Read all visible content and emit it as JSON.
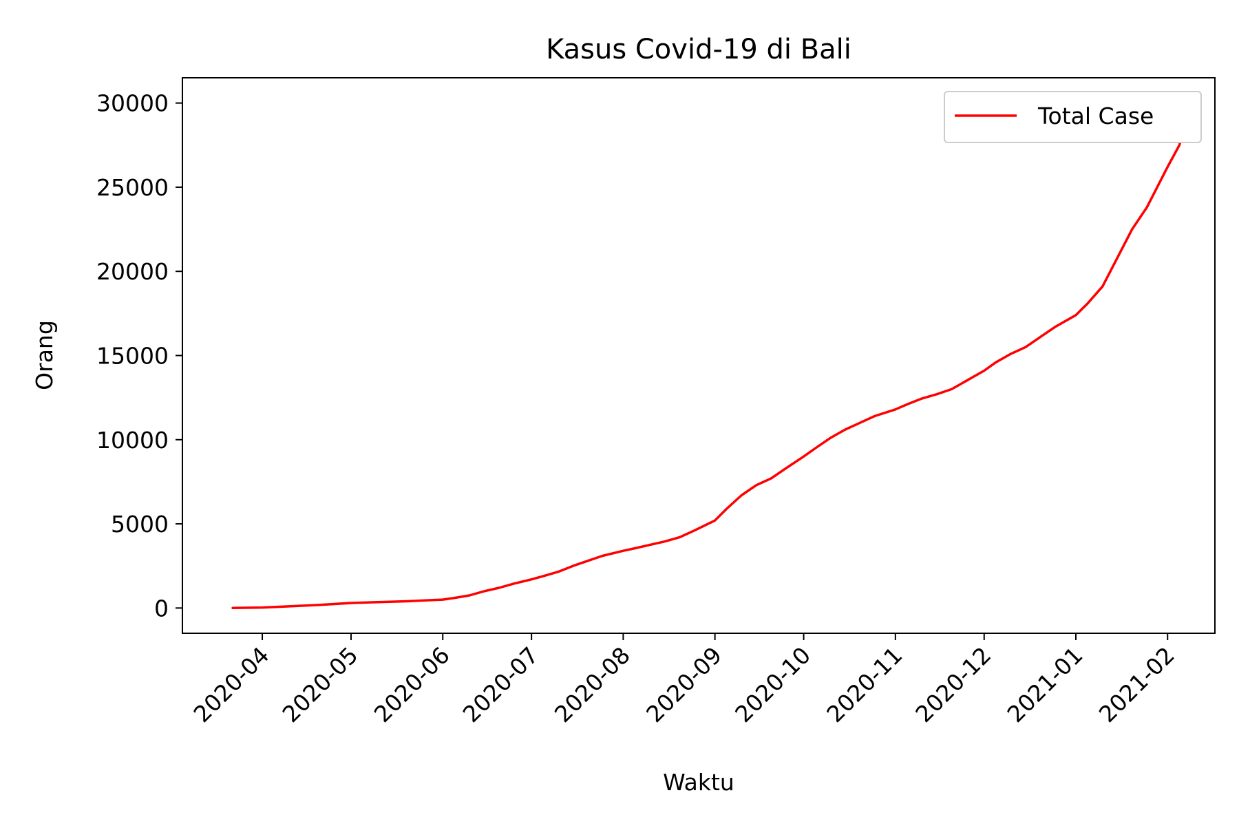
{
  "chart_data": {
    "type": "line",
    "title": "Kasus Covid-19 di Bali",
    "xlabel": "Waktu",
    "ylabel": "Orang",
    "x_axis_type": "date",
    "xlim": [
      "2020-03-05",
      "2021-02-17"
    ],
    "ylim": [
      -1500,
      31500
    ],
    "yticks": [
      0,
      5000,
      10000,
      15000,
      20000,
      25000,
      30000
    ],
    "ytick_labels": [
      "0",
      "5000",
      "10000",
      "15000",
      "20000",
      "25000",
      "30000"
    ],
    "xticks": [
      "2020-04-01",
      "2020-05-01",
      "2020-06-01",
      "2020-07-01",
      "2020-08-01",
      "2020-09-01",
      "2020-10-01",
      "2020-11-01",
      "2020-12-01",
      "2021-01-01",
      "2021-02-01"
    ],
    "xtick_labels": [
      "2020-04",
      "2020-05",
      "2020-06",
      "2020-07",
      "2020-08",
      "2020-09",
      "2020-10",
      "2020-11",
      "2020-12",
      "2021-01",
      "2021-02"
    ],
    "grid": false,
    "legend": {
      "position": "upper right",
      "entries": [
        "Total Case"
      ]
    },
    "series": [
      {
        "name": "Total Case",
        "color": "#ff0000",
        "x": [
          "2020-03-22",
          "2020-04-01",
          "2020-04-10",
          "2020-04-20",
          "2020-05-01",
          "2020-05-10",
          "2020-05-20",
          "2020-06-01",
          "2020-06-05",
          "2020-06-10",
          "2020-06-15",
          "2020-06-20",
          "2020-06-25",
          "2020-07-01",
          "2020-07-05",
          "2020-07-10",
          "2020-07-15",
          "2020-07-20",
          "2020-07-25",
          "2020-08-01",
          "2020-08-05",
          "2020-08-10",
          "2020-08-15",
          "2020-08-20",
          "2020-08-25",
          "2020-09-01",
          "2020-09-05",
          "2020-09-10",
          "2020-09-15",
          "2020-09-20",
          "2020-09-25",
          "2020-10-01",
          "2020-10-05",
          "2020-10-10",
          "2020-10-15",
          "2020-10-20",
          "2020-10-25",
          "2020-11-01",
          "2020-11-05",
          "2020-11-10",
          "2020-11-15",
          "2020-11-20",
          "2020-11-25",
          "2020-12-01",
          "2020-12-05",
          "2020-12-10",
          "2020-12-15",
          "2020-12-20",
          "2020-12-25",
          "2021-01-01",
          "2021-01-05",
          "2021-01-10",
          "2021-01-15",
          "2021-01-20",
          "2021-01-25",
          "2021-02-01",
          "2021-02-05",
          "2021-02-09"
        ],
        "values": [
          0,
          30,
          100,
          180,
          300,
          350,
          400,
          500,
          600,
          750,
          1000,
          1200,
          1450,
          1700,
          1900,
          2150,
          2500,
          2800,
          3100,
          3400,
          3550,
          3750,
          3950,
          4200,
          4600,
          5200,
          5900,
          6700,
          7300,
          7700,
          8300,
          9000,
          9500,
          10100,
          10600,
          11000,
          11400,
          11800,
          12100,
          12450,
          12700,
          13000,
          13500,
          14100,
          14600,
          15100,
          15500,
          16100,
          16700,
          17400,
          18100,
          19100,
          20800,
          22500,
          23800,
          26200,
          27500,
          30000
        ]
      }
    ]
  }
}
